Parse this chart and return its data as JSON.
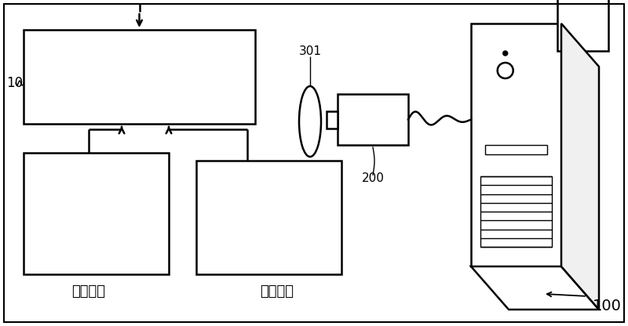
{
  "bg_color": "#ffffff",
  "line_color": "#000000",
  "label_left_eye": "左眼图像",
  "label_right_eye": "右眼图像",
  "label_10": "10",
  "label_200": "200",
  "label_301": "301",
  "label_100": "100",
  "figsize": [
    8.0,
    4.16
  ],
  "dpi": 100
}
